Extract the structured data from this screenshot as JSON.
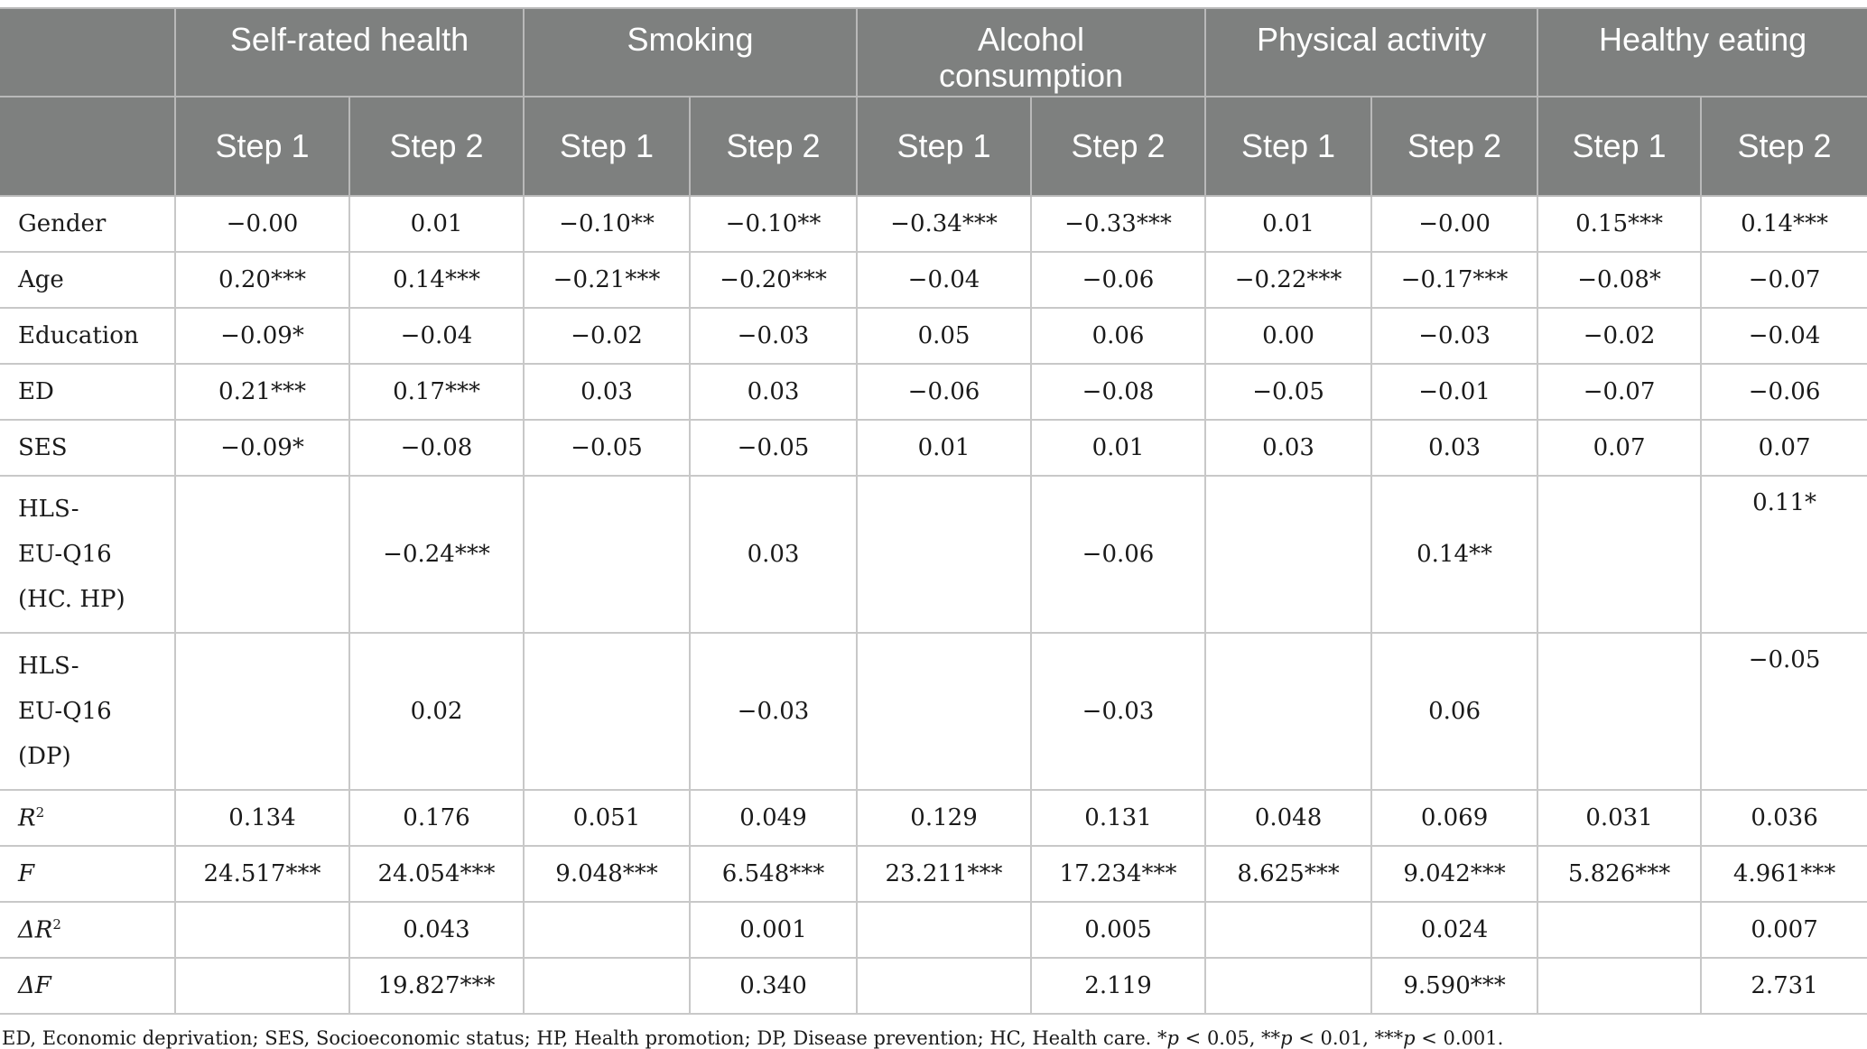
{
  "table": {
    "groups": [
      "Self-rated health",
      "Smoking",
      "Alcohol consumption",
      "Physical activity",
      "Healthy eating"
    ],
    "steps": [
      "Step 1",
      "Step 2",
      "Step 1",
      "Step 2",
      "Step 1",
      "Step 2",
      "Step 1",
      "Step 2",
      "Step 1",
      "Step 2"
    ],
    "rows": [
      {
        "label": "Gender",
        "values": [
          "−0.00",
          "0.01",
          "−0.10**",
          "−0.10**",
          "−0.34***",
          "−0.33***",
          "0.01",
          "−0.00",
          "0.15***",
          "0.14***"
        ]
      },
      {
        "label": "Age",
        "values": [
          "0.20***",
          "0.14***",
          "−0.21***",
          "−0.20***",
          "−0.04",
          "−0.06",
          "−0.22***",
          "−0.17***",
          "−0.08*",
          "−0.07"
        ]
      },
      {
        "label": "Education",
        "values": [
          "−0.09*",
          "−0.04",
          "−0.02",
          "−0.03",
          "0.05",
          "0.06",
          "0.00",
          "−0.03",
          "−0.02",
          "−0.04"
        ]
      },
      {
        "label": "ED",
        "values": [
          "0.21***",
          "0.17***",
          "0.03",
          "0.03",
          "−0.06",
          "−0.08",
          "−0.05",
          "−0.01",
          "−0.07",
          "−0.06"
        ]
      },
      {
        "label": "SES",
        "values": [
          "−0.09*",
          "−0.08",
          "−0.05",
          "−0.05",
          "0.01",
          "0.01",
          "0.03",
          "0.03",
          "0.07",
          "0.07"
        ]
      },
      {
        "label": "HLS-EU-Q16 (HC. HP)",
        "label_lines": [
          "HLS-",
          "EU-Q16",
          "(HC. HP)"
        ],
        "values": [
          "",
          "−0.24***",
          "",
          "0.03",
          "",
          "−0.06",
          "",
          "0.14**",
          "",
          "0.11*"
        ]
      },
      {
        "label": "HLS-EU-Q16 (DP)",
        "label_lines": [
          "HLS-",
          "EU-Q16",
          "(DP)"
        ],
        "values": [
          "",
          "0.02",
          "",
          "−0.03",
          "",
          "−0.03",
          "",
          "0.06",
          "",
          "−0.05"
        ]
      },
      {
        "label": "R2",
        "label_main": "R",
        "label_sup": "2",
        "values": [
          "0.134",
          "0.176",
          "0.051",
          "0.049",
          "0.129",
          "0.131",
          "0.048",
          "0.069",
          "0.031",
          "0.036"
        ]
      },
      {
        "label": "F",
        "label_main": "F",
        "values": [
          "24.517***",
          "24.054***",
          "9.048***",
          "6.548***",
          "23.211***",
          "17.234***",
          "8.625***",
          "9.042***",
          "5.826***",
          "4.961***"
        ]
      },
      {
        "label": "ΔR2",
        "label_main": "ΔR",
        "label_sup": "2",
        "values": [
          "",
          "0.043",
          "",
          "0.001",
          "",
          "0.005",
          "",
          "0.024",
          "",
          "0.007"
        ]
      },
      {
        "label": "ΔF",
        "label_main": "ΔF",
        "values": [
          "",
          "19.827***",
          "",
          "0.340",
          "",
          "2.119",
          "",
          "9.590***",
          "",
          "2.731"
        ]
      }
    ]
  },
  "footnote": {
    "text_pre": "ED, Economic deprivation; SES, Socioeconomic status; HP, Health promotion; DP, Disease prevention; HC, Health care. *",
    "p1": "p",
    "t1": " < 0.05, **",
    "p2": "p",
    "t2": " < 0.01, ***",
    "p3": "p",
    "t3": " < 0.001."
  },
  "colors": {
    "header_bg": "#7e807f",
    "header_text": "#ffffff",
    "grid": "#c8c8c8"
  }
}
